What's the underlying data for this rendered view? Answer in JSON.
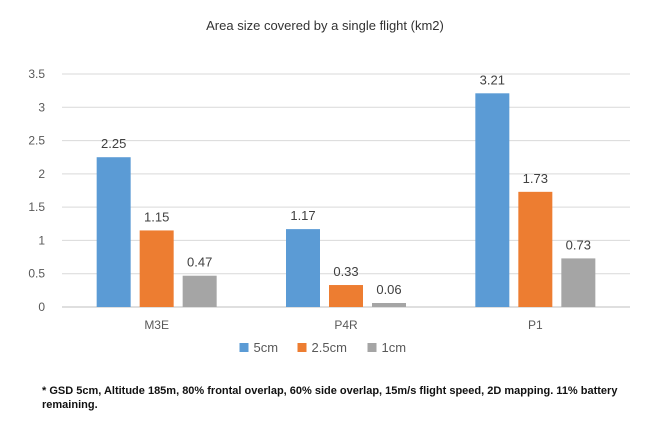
{
  "chart_data": {
    "type": "bar",
    "title": "Area size covered by a single flight (km2)",
    "categories": [
      "M3E",
      "P4R",
      "P1"
    ],
    "series": [
      {
        "name": "5cm",
        "color": "#5b9bd5",
        "values": [
          2.25,
          1.17,
          3.21
        ]
      },
      {
        "name": "2.5cm",
        "color": "#ed7d31",
        "values": [
          1.15,
          0.33,
          1.73
        ]
      },
      {
        "name": "1cm",
        "color": "#a5a5a5",
        "values": [
          0.47,
          0.06,
          0.73
        ]
      }
    ],
    "ylim": [
      0,
      3.5
    ],
    "yticks": [
      "0",
      "0.5",
      "1",
      "1.5",
      "2",
      "2.5",
      "3",
      "3.5"
    ],
    "grid": true,
    "legend_position": "bottom"
  },
  "footnote": "* GSD 5cm, Altitude 185m, 80% frontal overlap, 60% side overlap, 15m/s flight speed, 2D mapping. 11% battery remaining."
}
